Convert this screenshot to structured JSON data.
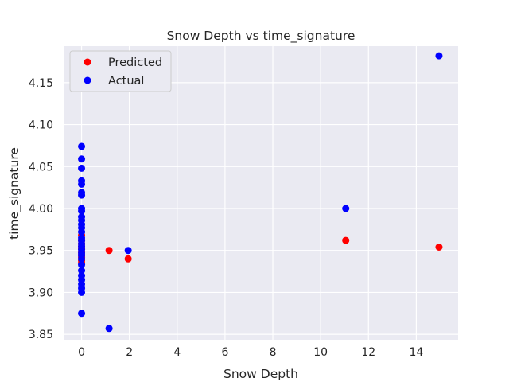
{
  "chart_data": {
    "type": "scatter",
    "title": "Snow Depth vs time_signature",
    "xlabel": "Snow Depth",
    "ylabel": "time_signature",
    "xlim": [
      -0.75,
      15.75
    ],
    "ylim": [
      3.8435,
      4.1935
    ],
    "xticks": [
      0,
      2,
      4,
      6,
      8,
      10,
      12,
      14
    ],
    "yticks": [
      3.85,
      3.9,
      3.95,
      4.0,
      4.05,
      4.1,
      4.15
    ],
    "xtick_labels": [
      "0",
      "2",
      "4",
      "6",
      "8",
      "10",
      "12",
      "14"
    ],
    "ytick_labels": [
      "3.85",
      "3.90",
      "3.95",
      "4.00",
      "4.05",
      "4.10",
      "4.15"
    ],
    "grid": true,
    "legend_position": "upper-left",
    "series": [
      {
        "name": "Predicted",
        "color": "#ff0000",
        "points": [
          {
            "x": 0,
            "y": 3.968
          },
          {
            "x": 0,
            "y": 3.962
          },
          {
            "x": 0,
            "y": 3.958
          },
          {
            "x": 0,
            "y": 3.955
          },
          {
            "x": 0,
            "y": 3.952
          },
          {
            "x": 0,
            "y": 3.948
          },
          {
            "x": 0,
            "y": 3.945
          },
          {
            "x": 0,
            "y": 3.942
          },
          {
            "x": 0,
            "y": 3.938
          },
          {
            "x": 0,
            "y": 3.935
          },
          {
            "x": 1.15,
            "y": 3.95
          },
          {
            "x": 1.95,
            "y": 3.94
          },
          {
            "x": 11.05,
            "y": 3.962
          },
          {
            "x": 14.95,
            "y": 3.954
          }
        ]
      },
      {
        "name": "Actual",
        "color": "#0000ff",
        "points": [
          {
            "x": 0,
            "y": 4.074
          },
          {
            "x": 0,
            "y": 4.059
          },
          {
            "x": 0,
            "y": 4.048
          },
          {
            "x": 0,
            "y": 4.033
          },
          {
            "x": 0,
            "y": 4.029
          },
          {
            "x": 0,
            "y": 4.019
          },
          {
            "x": 0,
            "y": 4.016
          },
          {
            "x": 0,
            "y": 4.0
          },
          {
            "x": 0,
            "y": 3.997
          },
          {
            "x": 0,
            "y": 3.99
          },
          {
            "x": 0,
            "y": 3.986
          },
          {
            "x": 0,
            "y": 3.981
          },
          {
            "x": 0,
            "y": 3.977
          },
          {
            "x": 0,
            "y": 3.972
          },
          {
            "x": 0,
            "y": 3.965
          },
          {
            "x": 0,
            "y": 3.962
          },
          {
            "x": 0,
            "y": 3.958
          },
          {
            "x": 0,
            "y": 3.955
          },
          {
            "x": 0,
            "y": 3.951
          },
          {
            "x": 0,
            "y": 3.947
          },
          {
            "x": 0,
            "y": 3.944
          },
          {
            "x": 0,
            "y": 3.94
          },
          {
            "x": 0,
            "y": 3.933
          },
          {
            "x": 0,
            "y": 3.926
          },
          {
            "x": 0,
            "y": 3.92
          },
          {
            "x": 0,
            "y": 3.915
          },
          {
            "x": 0,
            "y": 3.91
          },
          {
            "x": 0,
            "y": 3.905
          },
          {
            "x": 0,
            "y": 3.9
          },
          {
            "x": 0,
            "y": 3.875
          },
          {
            "x": 1.15,
            "y": 3.857
          },
          {
            "x": 1.95,
            "y": 3.95
          },
          {
            "x": 11.05,
            "y": 4.0
          },
          {
            "x": 14.95,
            "y": 4.182
          }
        ]
      }
    ]
  }
}
